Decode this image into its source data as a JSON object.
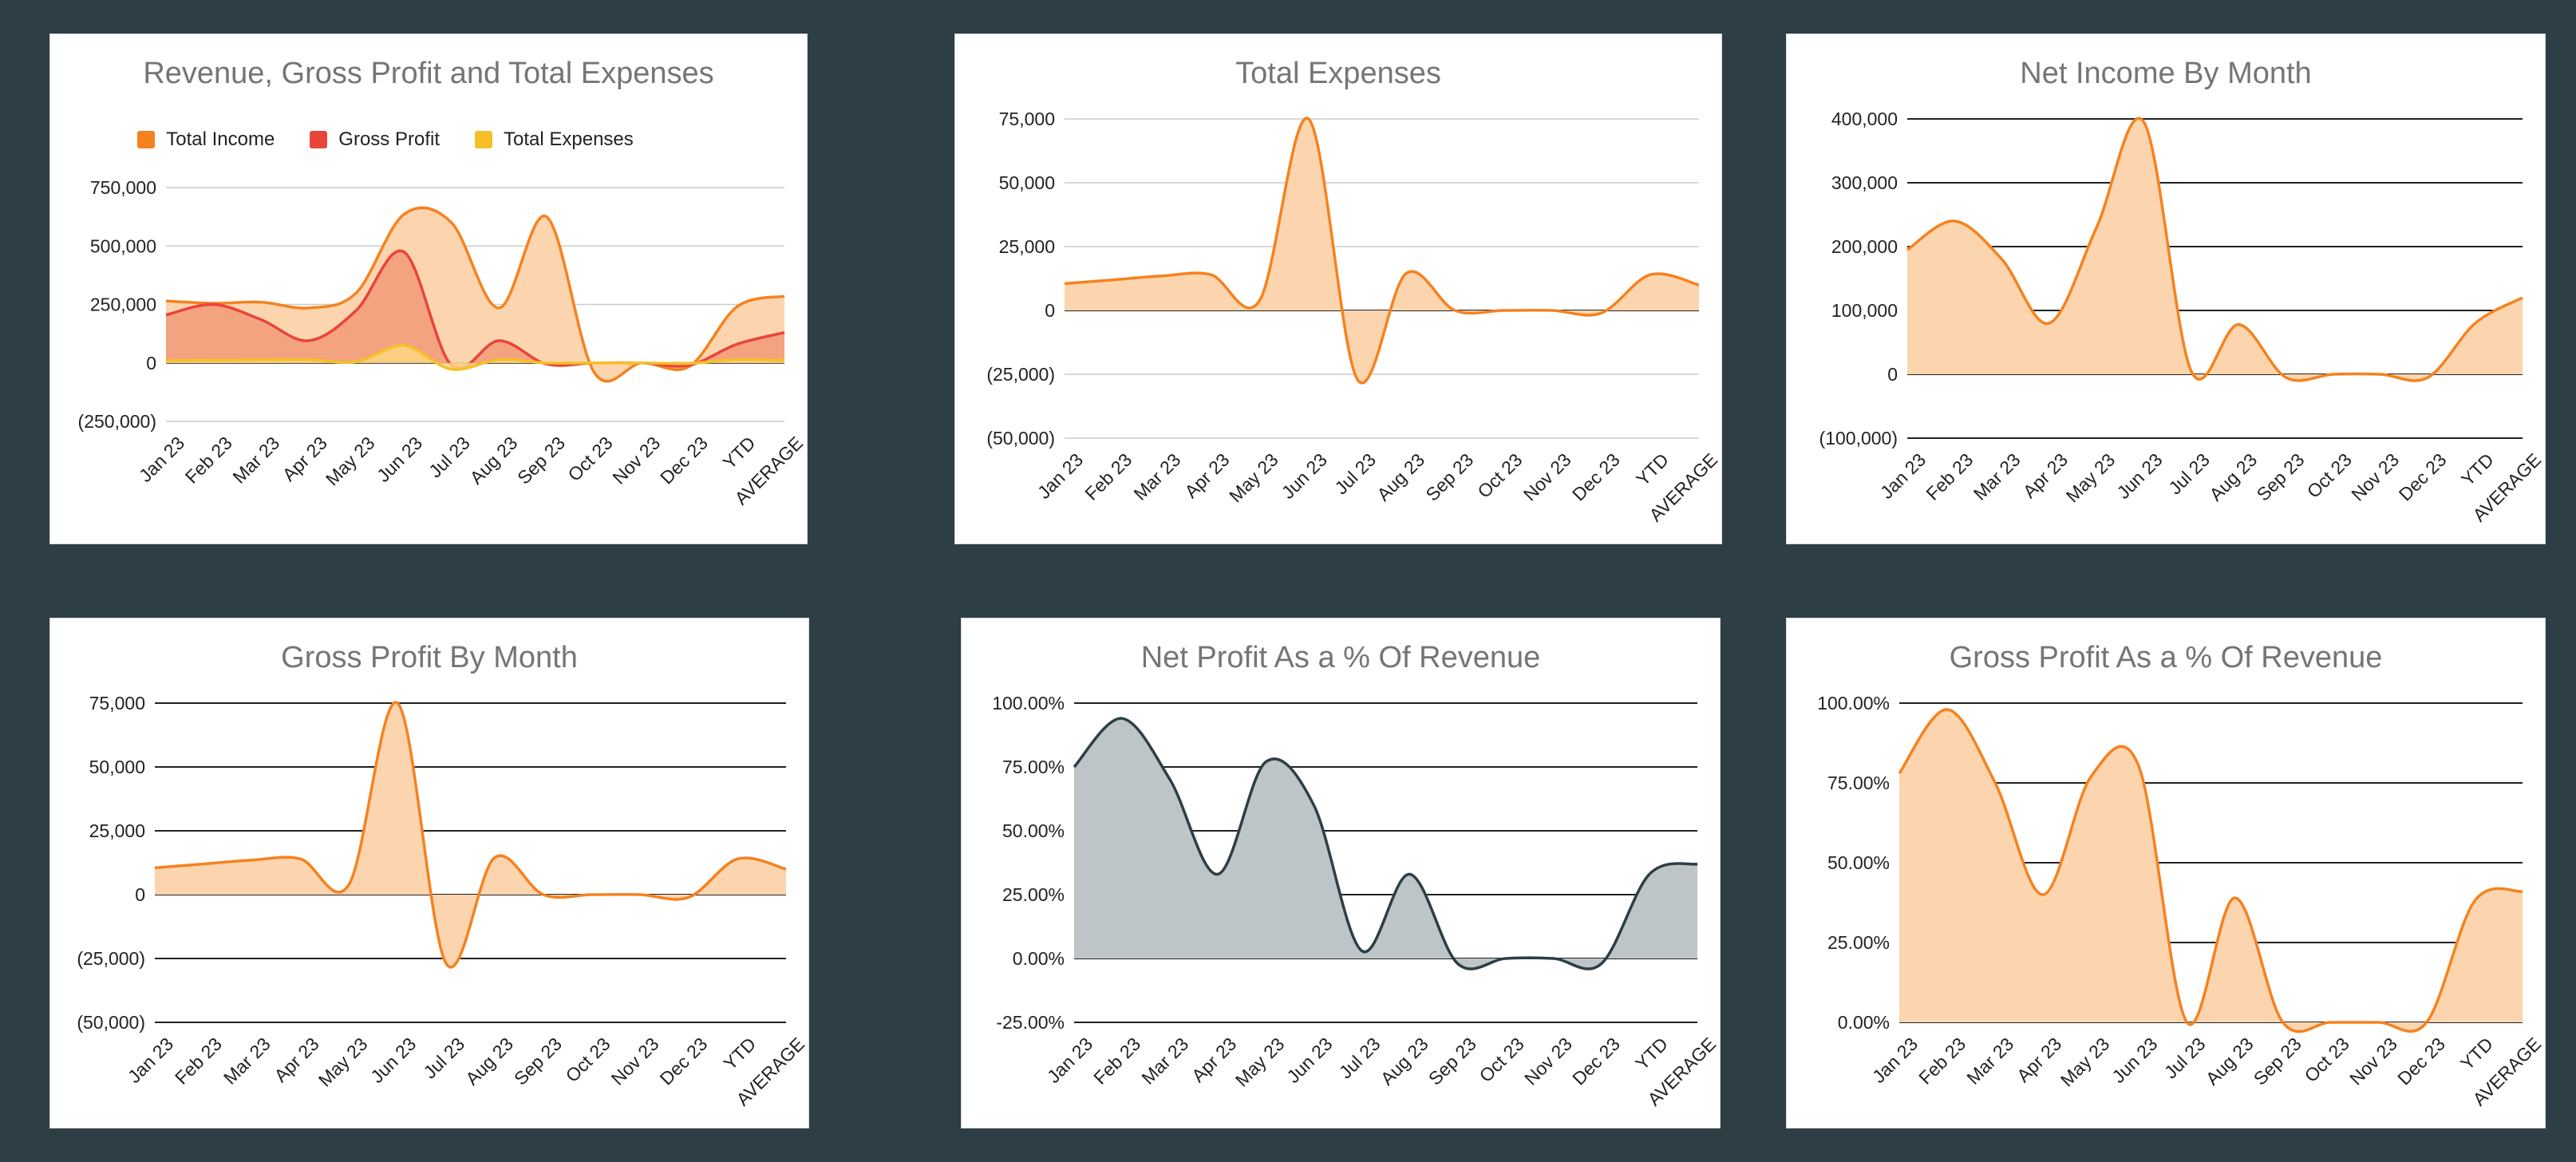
{
  "colors": {
    "background": "#2d3e45",
    "orange": "#f5821f",
    "orange_fill": "#fcd5af",
    "red": "#e8453c",
    "yellow": "#f6c026",
    "slate": "#2d3e45",
    "slate_fill": "#bec5c8"
  },
  "chart_data": [
    {
      "id": "c1",
      "type": "area",
      "title": "Revenue, Gross Profit and Total Expenses",
      "categories": [
        "Jan 23",
        "Feb 23",
        "Mar 23",
        "Apr 23",
        "May 23",
        "Jun 23",
        "Jul 23",
        "Aug 23",
        "Sep 23",
        "Oct 23",
        "Nov 23",
        "Dec 23",
        "YTD",
        "AVERAGE"
      ],
      "ylim": [
        -250000,
        750000
      ],
      "yticks": [
        -250000,
        0,
        250000,
        500000,
        750000
      ],
      "ytick_labels": [
        "(250,000)",
        "0",
        "250,000",
        "500,000",
        "750,000"
      ],
      "zero_line": true,
      "legend": {
        "position": "top"
      },
      "series": [
        {
          "name": "Total Income",
          "color": "orange",
          "fill": "orange_fill",
          "values": [
            265000,
            255000,
            260000,
            235000,
            300000,
            635000,
            600000,
            235000,
            625000,
            -40000,
            0,
            -15000,
            240000,
            285000
          ]
        },
        {
          "name": "Gross Profit",
          "color": "red",
          "fill": "#f19a77",
          "values": [
            205000,
            250000,
            185000,
            95000,
            225000,
            475000,
            -10000,
            95000,
            -5000,
            0,
            0,
            -10000,
            80000,
            130000
          ]
        },
        {
          "name": "Total Expenses",
          "color": "yellow",
          "fill": "#fbd780",
          "values": [
            10000,
            12000,
            13000,
            14000,
            5000,
            75000,
            -27000,
            14000,
            0,
            0,
            0,
            -2000,
            14000,
            10000
          ]
        }
      ]
    },
    {
      "id": "c2",
      "type": "area",
      "title": "Total Expenses",
      "categories": [
        "Jan 23",
        "Feb 23",
        "Mar 23",
        "Apr 23",
        "May 23",
        "Jun 23",
        "Jul 23",
        "Aug 23",
        "Sep 23",
        "Oct 23",
        "Nov 23",
        "Dec 23",
        "YTD",
        "AVERAGE"
      ],
      "ylim": [
        -50000,
        75000
      ],
      "yticks": [
        -50000,
        -25000,
        0,
        25000,
        50000,
        75000
      ],
      "ytick_labels": [
        "(50,000)",
        "(25,000)",
        "0",
        "25,000",
        "50,000",
        "75,000"
      ],
      "zero_line": true,
      "series": [
        {
          "color": "orange",
          "fill": "orange_fill",
          "values": [
            10500,
            12000,
            13500,
            14000,
            4000,
            75000,
            -27000,
            14500,
            0,
            0,
            0,
            -1000,
            14000,
            10000
          ]
        }
      ]
    },
    {
      "id": "c3",
      "type": "area",
      "title": "Net Income By Month",
      "categories": [
        "Jan 23",
        "Feb 23",
        "Mar 23",
        "Apr 23",
        "May 23",
        "Jun 23",
        "Jul 23",
        "Aug 23",
        "Sep 23",
        "Oct 23",
        "Nov 23",
        "Dec 23",
        "YTD",
        "AVERAGE"
      ],
      "ylim": [
        -100000,
        400000
      ],
      "yticks": [
        -100000,
        0,
        100000,
        200000,
        300000,
        400000
      ],
      "ytick_labels": [
        "(100,000)",
        "0",
        "100,000",
        "200,000",
        "300,000",
        "400,000"
      ],
      "dark_grid": true,
      "series": [
        {
          "color": "orange",
          "fill": "orange_fill",
          "values": [
            195000,
            240000,
            180000,
            80000,
            230000,
            395000,
            5000,
            78000,
            -5000,
            0,
            0,
            -5000,
            80000,
            120000
          ]
        }
      ]
    },
    {
      "id": "c4",
      "type": "area",
      "title": "Gross Profit By Month",
      "categories": [
        "Jan 23",
        "Feb 23",
        "Mar 23",
        "Apr 23",
        "May 23",
        "Jun 23",
        "Jul 23",
        "Aug 23",
        "Sep 23",
        "Oct 23",
        "Nov 23",
        "Dec 23",
        "YTD",
        "AVERAGE"
      ],
      "ylim": [
        -50000,
        75000
      ],
      "yticks": [
        -50000,
        -25000,
        0,
        25000,
        50000,
        75000
      ],
      "ytick_labels": [
        "(50,000)",
        "(25,000)",
        "0",
        "25,000",
        "50,000",
        "75,000"
      ],
      "dark_grid": true,
      "series": [
        {
          "color": "orange",
          "fill": "orange_fill",
          "values": [
            10500,
            12000,
            13500,
            14000,
            4000,
            75000,
            -27000,
            14500,
            0,
            0,
            0,
            -1000,
            14000,
            10000
          ]
        }
      ]
    },
    {
      "id": "c5",
      "type": "area",
      "title": "Net Profit As a % Of Revenue",
      "categories": [
        "Jan 23",
        "Feb 23",
        "Mar 23",
        "Apr 23",
        "May 23",
        "Jun 23",
        "Jul 23",
        "Aug 23",
        "Sep 23",
        "Oct 23",
        "Nov 23",
        "Dec 23",
        "YTD",
        "AVERAGE"
      ],
      "ylim": [
        -25,
        100
      ],
      "yticks": [
        -25,
        0,
        25,
        50,
        75,
        100
      ],
      "ytick_labels": [
        "-25.00%",
        "0.00%",
        "25.00%",
        "50.00%",
        "75.00%",
        "100.00%"
      ],
      "dark_grid": true,
      "series": [
        {
          "color": "slate",
          "fill": "slate_fill",
          "values": [
            75,
            94,
            70,
            33,
            77,
            60,
            3,
            33,
            -2,
            0,
            0,
            -2,
            33,
            37
          ]
        }
      ]
    },
    {
      "id": "c6",
      "type": "area",
      "title": "Gross Profit As a % Of Revenue",
      "categories": [
        "Jan 23",
        "Feb 23",
        "Mar 23",
        "Apr 23",
        "May 23",
        "Jun 23",
        "Jul 23",
        "Aug 23",
        "Sep 23",
        "Oct 23",
        "Nov 23",
        "Dec 23",
        "YTD",
        "AVERAGE"
      ],
      "ylim": [
        0,
        100
      ],
      "yticks": [
        0,
        25,
        50,
        75,
        100
      ],
      "ytick_labels": [
        "0.00%",
        "25.00%",
        "50.00%",
        "75.00%",
        "100.00%"
      ],
      "dark_grid": true,
      "series": [
        {
          "color": "orange",
          "fill": "orange_fill",
          "values": [
            78,
            98,
            75,
            40,
            77,
            80,
            0,
            39,
            0,
            0,
            0,
            0,
            38,
            41
          ]
        }
      ]
    }
  ]
}
